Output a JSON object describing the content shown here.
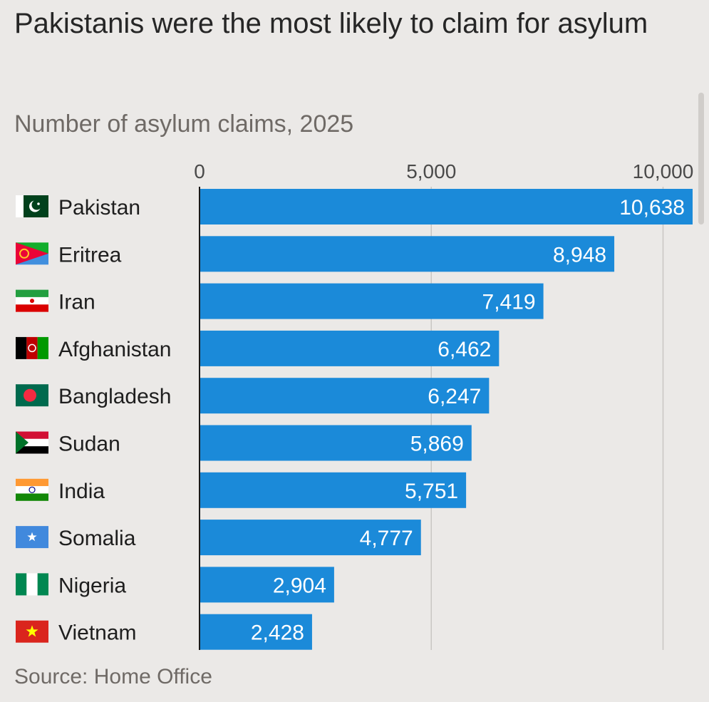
{
  "page": {
    "title": "Pakistanis were the most likely to claim for asylum",
    "subtitle": "Number of asylum claims, 2025",
    "source": "Source: Home Office"
  },
  "colors": {
    "bar": "#1b8ad9",
    "grid": "#c9c6c3",
    "axis": "#1a1a1a"
  },
  "chart_data": {
    "type": "bar",
    "orientation": "horizontal",
    "title": "Pakistanis were the most likely to claim for asylum",
    "subtitle": "Number of asylum claims, 2025",
    "xlabel": "",
    "ylabel": "",
    "xlim": [
      0,
      10638
    ],
    "x_ticks": [
      0,
      5000,
      10000
    ],
    "x_tick_labels": [
      "0",
      "5,000",
      "10,000"
    ],
    "grid": true,
    "categories": [
      "Pakistan",
      "Eritrea",
      "Iran",
      "Afghanistan",
      "Bangladesh",
      "Sudan",
      "India",
      "Somalia",
      "Nigeria",
      "Vietnam"
    ],
    "flags": [
      "pakistan-flag-icon",
      "eritrea-flag-icon",
      "iran-flag-icon",
      "afghanistan-flag-icon",
      "bangladesh-flag-icon",
      "sudan-flag-icon",
      "india-flag-icon",
      "somalia-flag-icon",
      "nigeria-flag-icon",
      "vietnam-flag-icon"
    ],
    "values": [
      10638,
      8948,
      7419,
      6462,
      6247,
      5869,
      5751,
      4777,
      2904,
      2428
    ],
    "value_labels": [
      "10,638",
      "8,948",
      "7,419",
      "6,462",
      "6,247",
      "5,869",
      "5,751",
      "4,777",
      "2,904",
      "2,428"
    ],
    "source": "Source: Home Office"
  }
}
